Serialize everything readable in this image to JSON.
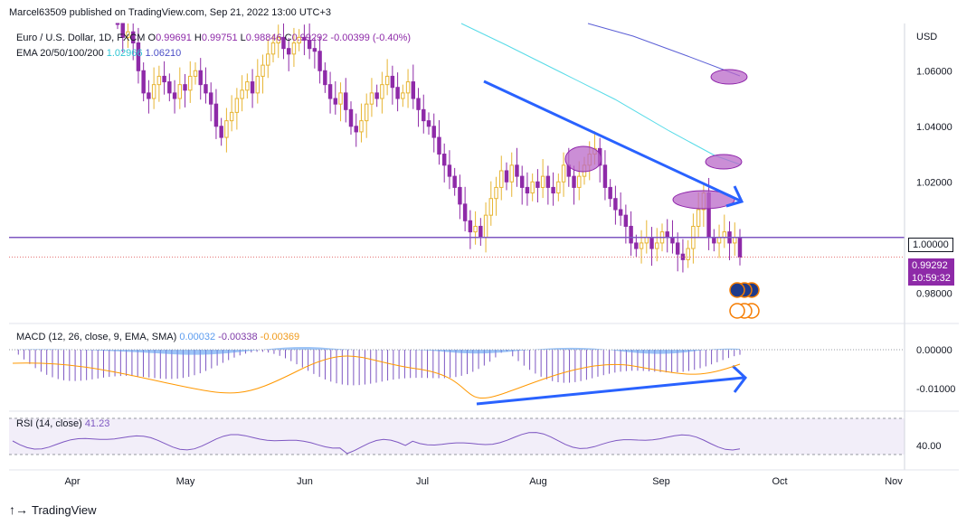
{
  "header": {
    "published_by": "Marcel63509 published on TradingView.com, Sep 21, 2022 13:00 UTC+3"
  },
  "legend_main": {
    "symbol": "Euro / U.S. Dollar, 1D, FXCM",
    "o_label": "O",
    "o_value": "0.99691",
    "h_label": "H",
    "h_value": "0.99751",
    "l_label": "L",
    "l_value": "0.98846",
    "c_label": "C",
    "c_value": "0.99292",
    "change": "-0.00399 (-0.40%)",
    "ema_label": "EMA 20/50/100/200",
    "ema_v1": "1.02966",
    "ema_v2": "1.06210"
  },
  "legend_macd": {
    "label": "MACD (12, 26, close, 9, EMA, SMA)",
    "v1": "0.00032",
    "v2": "-0.00338",
    "v3": "-0.00369"
  },
  "legend_rsi": {
    "label": "RSI (14, close)",
    "value": "41.23"
  },
  "axis": {
    "currency": "USD",
    "price_ticks": [
      "1.06000",
      "1.04000",
      "1.02000",
      "1.00000",
      "0.98000"
    ],
    "price_tick_values": [
      1.06,
      1.04,
      1.02,
      1.0,
      0.98
    ],
    "current_price": "0.99292",
    "countdown": "10:59:32",
    "macd_ticks": [
      "0.00000",
      "-0.01000"
    ],
    "rsi_ticks": [
      "40.00"
    ],
    "time_ticks": [
      "Apr",
      "May",
      "Jun",
      "Jul",
      "Aug",
      "Sep",
      "Oct",
      "Nov"
    ]
  },
  "colors": {
    "bull": "#e7b533",
    "bear": "#8e2aa8",
    "ema_cyan": "#56dbe8",
    "ema_blue": "#5b5fd6",
    "arrow": "#2962ff",
    "level_line": "#7e57c2",
    "macd_line": "#2962ff",
    "signal_line": "#ff9800",
    "rsi_line": "#7e57c2"
  },
  "footer": {
    "brand": "TradingView"
  },
  "chart_data": {
    "type": "candlestick",
    "title": "Euro / U.S. Dollar, 1D, FXCM",
    "ylabel": "USD",
    "ylim": [
      0.97,
      1.077
    ],
    "x": [
      "Apr",
      "May",
      "Jun",
      "Jul",
      "Aug",
      "Sep",
      "Oct",
      "Nov"
    ],
    "candles_close": [
      1.078,
      1.072,
      1.074,
      1.07,
      1.06,
      1.052,
      1.05,
      1.055,
      1.058,
      1.056,
      1.052,
      1.05,
      1.055,
      1.053,
      1.058,
      1.06,
      1.055,
      1.052,
      1.048,
      1.04,
      1.036,
      1.042,
      1.045,
      1.05,
      1.053,
      1.056,
      1.052,
      1.058,
      1.062,
      1.066,
      1.07,
      1.072,
      1.068,
      1.066,
      1.07,
      1.072,
      1.071,
      1.068,
      1.067,
      1.06,
      1.055,
      1.05,
      1.048,
      1.052,
      1.046,
      1.04,
      1.038,
      1.042,
      1.048,
      1.052,
      1.05,
      1.055,
      1.058,
      1.054,
      1.05,
      1.052,
      1.056,
      1.05,
      1.046,
      1.042,
      1.04,
      1.036,
      1.03,
      1.026,
      1.022,
      1.018,
      1.012,
      1.006,
      1.002,
      1.004,
      1.0,
      1.008,
      1.014,
      1.018,
      1.024,
      1.02,
      1.026,
      1.022,
      1.018,
      1.016,
      1.02,
      1.018,
      1.022,
      1.018,
      1.016,
      1.02,
      1.026,
      1.022,
      1.018,
      1.022,
      1.026,
      1.03,
      1.032,
      1.026,
      1.018,
      1.014,
      1.01,
      1.008,
      1.004,
      0.998,
      0.996,
      0.998,
      1.0,
      0.996,
      0.998,
      1.002,
      1.0,
      0.998,
      0.994,
      0.992,
      0.996,
      1.004,
      1.01,
      1.016,
      1.0,
      0.998,
      1.0,
      1.002,
      0.998,
      1.0,
      0.99292
    ],
    "price_level": 1.0,
    "ema_series": [
      {
        "name": "1.02966"
      },
      {
        "name": "1.06210"
      }
    ],
    "macd": {
      "ylim": [
        -0.018,
        0.005
      ],
      "values": [
        "0.00032",
        "-0.00338",
        "-0.00369"
      ]
    },
    "rsi": {
      "ylim": [
        20,
        80
      ],
      "value": 41.23
    },
    "annotations": [
      "downtrend arrow on price",
      "uptrend arrow on MACD",
      "highlighted ellipses at resistance"
    ]
  }
}
